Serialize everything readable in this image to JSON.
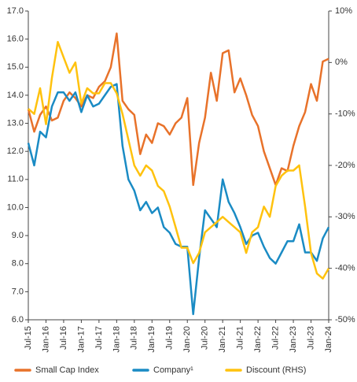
{
  "chart_data": {
    "type": "line",
    "x": [
      "Jul-15",
      "Sep-15",
      "Nov-15",
      "Jan-16",
      "Mar-16",
      "May-16",
      "Jul-16",
      "Sep-16",
      "Nov-16",
      "Jan-17",
      "Mar-17",
      "May-17",
      "Jul-17",
      "Sep-17",
      "Nov-17",
      "Jan-18",
      "Mar-18",
      "May-18",
      "Jul-18",
      "Sep-18",
      "Nov-18",
      "Jan-19",
      "Mar-19",
      "May-19",
      "Jul-19",
      "Sep-19",
      "Nov-19",
      "Jan-20",
      "Mar-20",
      "May-20",
      "Jul-20",
      "Sep-20",
      "Nov-20",
      "Jan-21",
      "Mar-21",
      "May-21",
      "Jul-21",
      "Sep-21",
      "Nov-21",
      "Jan-22",
      "Mar-22",
      "May-22",
      "Jul-22",
      "Sep-22",
      "Nov-22",
      "Jan-23",
      "Mar-23",
      "May-23",
      "Jul-23",
      "Sep-23",
      "Nov-23",
      "Jan-24"
    ],
    "xticks": [
      "Jul-15",
      "Jan-16",
      "Jul-16",
      "Jan-17",
      "Jul-17",
      "Jan-18",
      "Jul-18",
      "Jan-19",
      "Jul-19",
      "Jan-20",
      "Jul-20",
      "Jan-21",
      "Jul-21",
      "Jan-22",
      "Jul-22",
      "Jan-23",
      "Jul-23",
      "Jan-24"
    ],
    "series": [
      {
        "name": "Small Cap Index",
        "color": "#e8722a",
        "values": [
          13.5,
          12.7,
          13.3,
          13.6,
          13.1,
          13.2,
          13.8,
          14.1,
          13.9,
          13.6,
          14.0,
          13.9,
          14.3,
          14.5,
          15.0,
          16.2,
          13.8,
          13.5,
          13.3,
          11.9,
          12.6,
          12.3,
          13.0,
          12.9,
          12.6,
          13.0,
          13.2,
          13.9,
          10.8,
          12.3,
          13.2,
          14.8,
          13.8,
          15.5,
          15.6,
          14.1,
          14.6,
          14.0,
          13.3,
          12.9,
          12.0,
          11.4,
          10.8,
          11.4,
          11.3,
          12.2,
          12.9,
          13.4,
          14.4,
          13.8,
          15.2,
          15.3
        ]
      },
      {
        "name": "Company¹",
        "color": "#1a8bc4",
        "values": [
          12.3,
          11.5,
          12.7,
          12.5,
          13.6,
          14.1,
          14.1,
          13.8,
          14.1,
          13.4,
          14.0,
          13.6,
          13.7,
          14.0,
          14.3,
          14.4,
          12.2,
          11.0,
          10.6,
          9.9,
          10.2,
          9.8,
          10.0,
          9.3,
          9.1,
          8.7,
          8.6,
          8.6,
          6.2,
          8.2,
          9.9,
          9.6,
          9.3,
          11.0,
          10.2,
          9.8,
          9.3,
          8.7,
          9.0,
          9.1,
          8.6,
          8.2,
          8.0,
          8.4,
          8.8,
          8.8,
          9.4,
          8.4,
          8.4,
          8.1,
          8.9,
          9.3
        ]
      },
      {
        "name": "Discount (RHS)",
        "color": "#ffc20e",
        "axis": "y2",
        "values": [
          -9,
          -10,
          -5,
          -12,
          -3,
          4,
          1,
          -2,
          0,
          -8,
          -5,
          -6,
          -6,
          -4,
          -4,
          -6,
          -10,
          -15,
          -20,
          -22,
          -20,
          -21,
          -24,
          -25,
          -28,
          -32,
          -36,
          -36,
          -39,
          -37,
          -33,
          -32,
          -31,
          -30,
          -31,
          -32,
          -33,
          -37,
          -33,
          -32,
          -28,
          -30,
          -24,
          -22,
          -21,
          -21,
          -20,
          -28,
          -37,
          -41,
          -42,
          -40
        ]
      }
    ],
    "ylim": [
      6,
      17
    ],
    "yticks": [
      {
        "value": 6,
        "label": "6.0"
      },
      {
        "value": 7,
        "label": "7.0"
      },
      {
        "value": 8,
        "label": "8.0"
      },
      {
        "value": 9,
        "label": "9.0"
      },
      {
        "value": 10,
        "label": "10.0"
      },
      {
        "value": 11,
        "label": "11.0"
      },
      {
        "value": 12,
        "label": "12.0"
      },
      {
        "value": 13,
        "label": "13.0"
      },
      {
        "value": 14,
        "label": "14.0"
      },
      {
        "value": 15,
        "label": "15.0"
      },
      {
        "value": 16,
        "label": "16.0"
      },
      {
        "value": 17,
        "label": "17.0"
      }
    ],
    "y2lim": [
      -50,
      10
    ],
    "y2ticks": [
      {
        "value": -50,
        "label": "-50%"
      },
      {
        "value": -40,
        "label": "-40%"
      },
      {
        "value": -30,
        "label": "-30%"
      },
      {
        "value": -20,
        "label": "-20%"
      },
      {
        "value": -10,
        "label": "-10%"
      },
      {
        "value": 0,
        "label": "0%"
      },
      {
        "value": 10,
        "label": "10%"
      }
    ]
  }
}
